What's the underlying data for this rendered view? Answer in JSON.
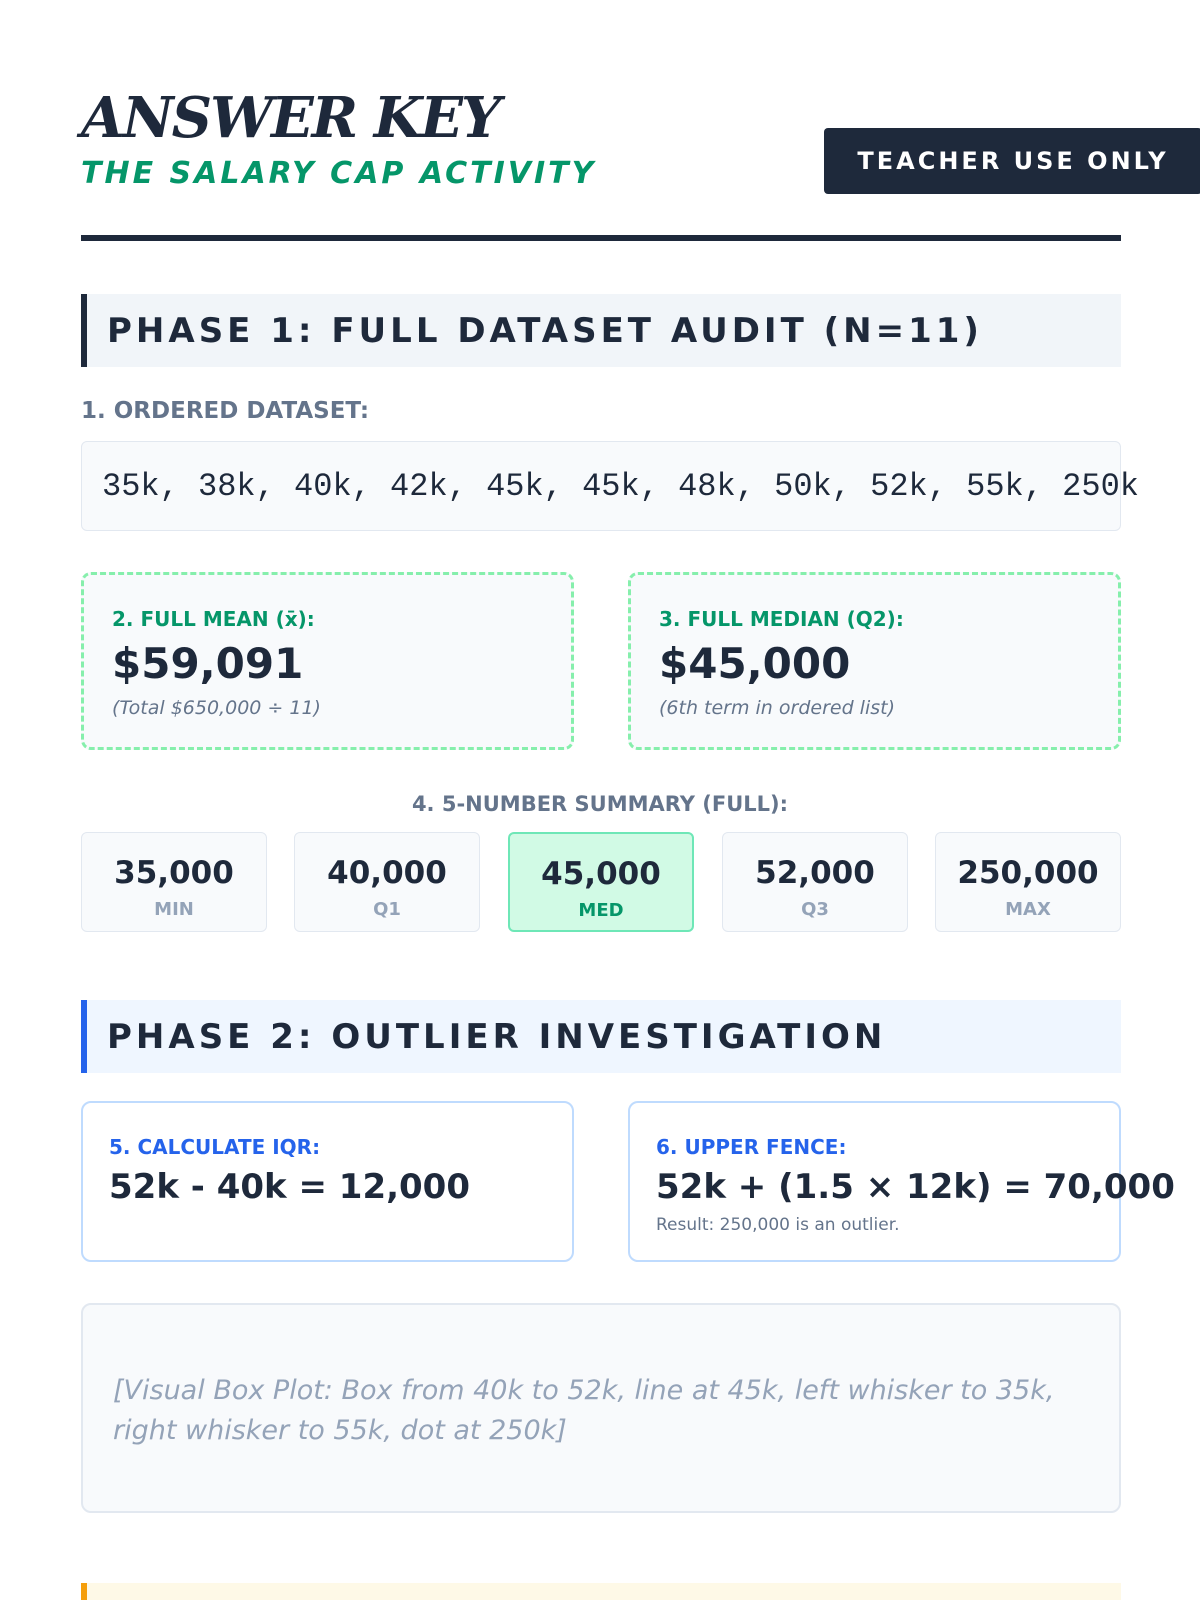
{
  "header": {
    "title": "ANSWER KEY",
    "subtitle": "THE SALARY CAP ACTIVITY",
    "badge": "TEACHER USE ONLY"
  },
  "phase1": {
    "heading": "PHASE 1: FULL DATASET AUDIT (N=11)",
    "q1_label": "1. ORDERED DATASET:",
    "dataset": "35k, 38k, 40k, 42k, 45k, 45k, 48k, 50k, 52k, 55k, 250k",
    "mean": {
      "label": "2. FULL MEAN (x̄):",
      "value": "$59,091",
      "note": "(Total $650,000 ÷ 11)"
    },
    "median": {
      "label": "3. FULL MEDIAN (Q2):",
      "value": "$45,000",
      "note": "(6th term in ordered list)"
    },
    "summary_label": "4. 5-NUMBER SUMMARY (FULL):",
    "summary": [
      {
        "value": "35,000",
        "label": "MIN"
      },
      {
        "value": "40,000",
        "label": "Q1"
      },
      {
        "value": "45,000",
        "label": "MED"
      },
      {
        "value": "52,000",
        "label": "Q3"
      },
      {
        "value": "250,000",
        "label": "MAX"
      }
    ]
  },
  "phase2": {
    "heading": "PHASE 2: OUTLIER INVESTIGATION",
    "iqr": {
      "label": "5. CALCULATE IQR:",
      "value": "52k - 40k = 12,000"
    },
    "fence": {
      "label": "6. UPPER FENCE:",
      "value": "52k + (1.5 × 12k) = 70,000",
      "note": "Result: 250,000 is an outlier."
    },
    "boxplot_text": "[Visual Box Plot: Box from 40k to 52k, line at 45k, left whisker to 35k, right whisker to 55k, dot at 250k]"
  }
}
